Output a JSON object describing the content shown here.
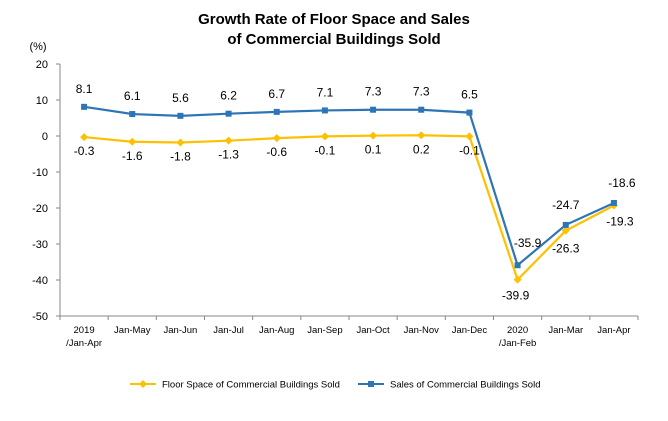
{
  "chart_data": {
    "type": "line",
    "title": [
      "Growth Rate of Floor Space and Sales",
      "of Commercial Buildings Sold"
    ],
    "ylabel": "(%)",
    "ylim": [
      -50,
      20
    ],
    "yticks": [
      "20",
      "10",
      "0",
      "-10",
      "-20",
      "-30",
      "-40",
      "-50"
    ],
    "categories": [
      [
        "2019",
        "/Jan-Apr"
      ],
      [
        "Jan-May"
      ],
      [
        "Jan-Jun"
      ],
      [
        "Jan-Jul"
      ],
      [
        "Jan-Aug"
      ],
      [
        "Jan-Sep"
      ],
      [
        "Jan-Oct"
      ],
      [
        "Jan-Nov"
      ],
      [
        "Jan-Dec"
      ],
      [
        "2020",
        "/Jan-Feb"
      ],
      [
        "Jan-Mar"
      ],
      [
        "Jan-Apr"
      ]
    ],
    "series": [
      {
        "name": "Floor Space of Commercial Buildings Sold",
        "color": "#FFC000",
        "marker": "diamond",
        "values": [
          -0.3,
          -1.6,
          -1.8,
          -1.3,
          -0.6,
          -0.1,
          0.1,
          0.2,
          -0.1,
          -39.9,
          -26.3,
          -19.3
        ],
        "labels": [
          "-0.3",
          "-1.6",
          "-1.8",
          "-1.3",
          "-0.6",
          "-0.1",
          "0.1",
          "0.2",
          "-0.1",
          "-39.9",
          "-26.3",
          "-19.3"
        ]
      },
      {
        "name": "Sales of Commercial Buildings Sold",
        "color": "#2E75B6",
        "marker": "square",
        "values": [
          8.1,
          6.1,
          5.6,
          6.2,
          6.7,
          7.1,
          7.3,
          7.3,
          6.5,
          -35.9,
          -24.7,
          -18.6
        ],
        "labels": [
          "8.1",
          "6.1",
          "5.6",
          "6.2",
          "6.7",
          "7.1",
          "7.3",
          "7.3",
          "6.5",
          "-35.9",
          "-24.7",
          "-18.6"
        ]
      }
    ],
    "grid": false,
    "legend_position": "bottom"
  }
}
